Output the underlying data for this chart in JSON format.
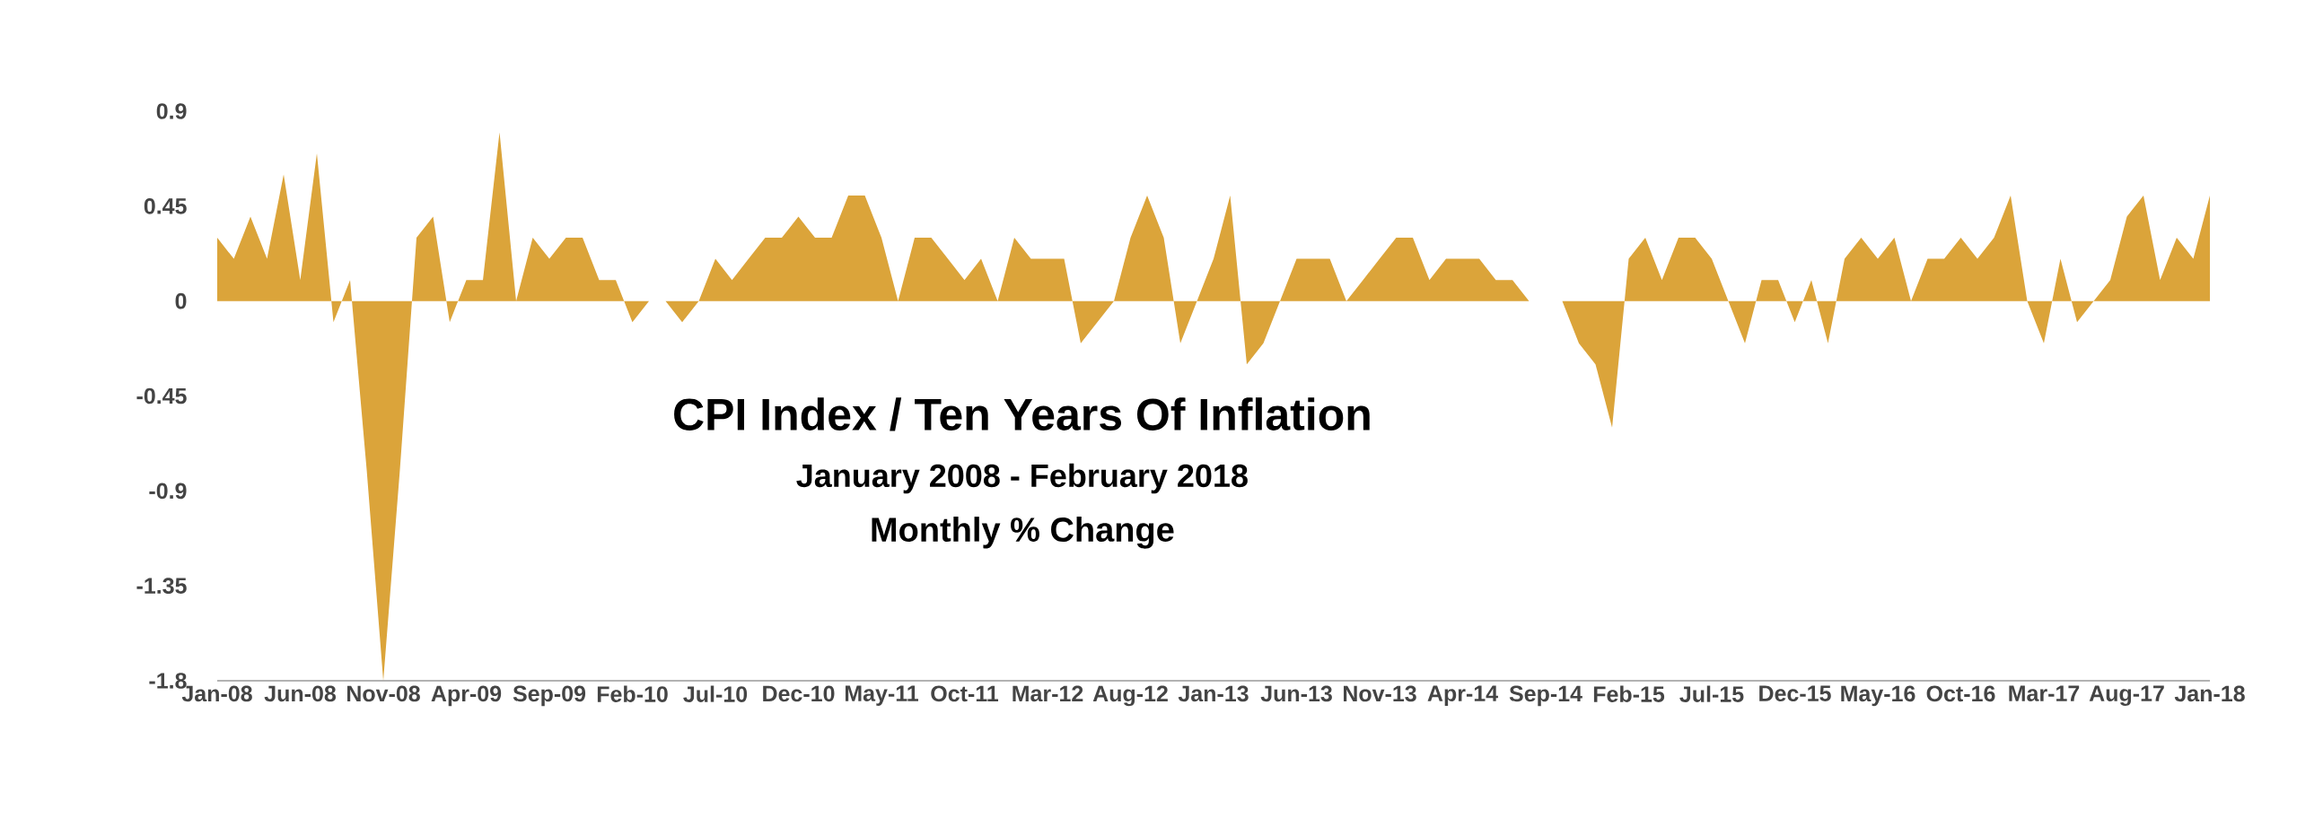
{
  "chart_data": {
    "type": "area",
    "title": "CPI Index / Ten Years Of Inflation",
    "subtitle": "January 2008 - February 2018",
    "annotations": [
      "Monthly % Change"
    ],
    "categories": [
      "Jan-08",
      null,
      null,
      null,
      null,
      "Jun-08",
      null,
      null,
      null,
      null,
      "Nov-08",
      null,
      null,
      null,
      null,
      "Apr-09",
      null,
      null,
      null,
      null,
      "Sep-09",
      null,
      null,
      null,
      null,
      "Feb-10",
      null,
      null,
      null,
      null,
      "Jul-10",
      null,
      null,
      null,
      null,
      "Dec-10",
      null,
      null,
      null,
      null,
      "May-11",
      null,
      null,
      null,
      null,
      "Oct-11",
      null,
      null,
      null,
      null,
      "Mar-12",
      null,
      null,
      null,
      null,
      "Aug-12",
      null,
      null,
      null,
      null,
      "Jan-13",
      null,
      null,
      null,
      null,
      "Jun-13",
      null,
      null,
      null,
      null,
      "Nov-13",
      null,
      null,
      null,
      null,
      "Apr-14",
      null,
      null,
      null,
      null,
      "Sep-14",
      null,
      null,
      null,
      null,
      "Feb-15",
      null,
      null,
      null,
      null,
      "Jul-15",
      null,
      null,
      null,
      null,
      "Dec-15",
      null,
      null,
      null,
      null,
      "May-16",
      null,
      null,
      null,
      null,
      "Oct-16",
      null,
      null,
      null,
      null,
      "Mar-17",
      null,
      null,
      null,
      null,
      "Aug-17",
      null,
      null,
      null,
      null,
      "Jan-18"
    ],
    "values": [
      0.3,
      0.2,
      0.4,
      0.2,
      0.6,
      0.1,
      0.7,
      -0.1,
      0.1,
      -0.8,
      -1.8,
      -0.8,
      0.3,
      0.4,
      -0.1,
      0.1,
      0.1,
      0.8,
      0.0,
      0.3,
      0.2,
      0.3,
      0.3,
      0.1,
      0.1,
      -0.1,
      0.0,
      0.0,
      -0.1,
      0.0,
      0.2,
      0.1,
      0.2,
      0.3,
      0.3,
      0.4,
      0.3,
      0.3,
      0.5,
      0.5,
      0.3,
      0.0,
      0.3,
      0.3,
      0.2,
      0.1,
      0.2,
      0.0,
      0.3,
      0.2,
      0.2,
      0.2,
      -0.2,
      -0.1,
      0.0,
      0.3,
      0.5,
      0.3,
      -0.2,
      0.0,
      0.2,
      0.5,
      -0.3,
      -0.2,
      0.0,
      0.2,
      0.2,
      0.2,
      0.0,
      0.1,
      0.2,
      0.3,
      0.3,
      0.1,
      0.2,
      0.2,
      0.2,
      0.1,
      0.1,
      0.0,
      0.0,
      0.0,
      -0.2,
      -0.3,
      -0.6,
      0.2,
      0.3,
      0.1,
      0.3,
      0.3,
      0.2,
      0.0,
      -0.2,
      0.1,
      0.1,
      -0.1,
      0.1,
      -0.2,
      0.2,
      0.3,
      0.2,
      0.3,
      0.0,
      0.2,
      0.2,
      0.3,
      0.2,
      0.3,
      0.5,
      0.0,
      -0.2,
      0.2,
      -0.1,
      0.0,
      0.1,
      0.4,
      0.5,
      0.1,
      0.3,
      0.2,
      0.5
    ],
    "color": "#dba43a",
    "ylim": [
      -1.8,
      0.9
    ],
    "yticks": [
      0.9,
      0.45,
      0,
      -0.45,
      -0.9,
      -1.35,
      -1.8
    ]
  }
}
